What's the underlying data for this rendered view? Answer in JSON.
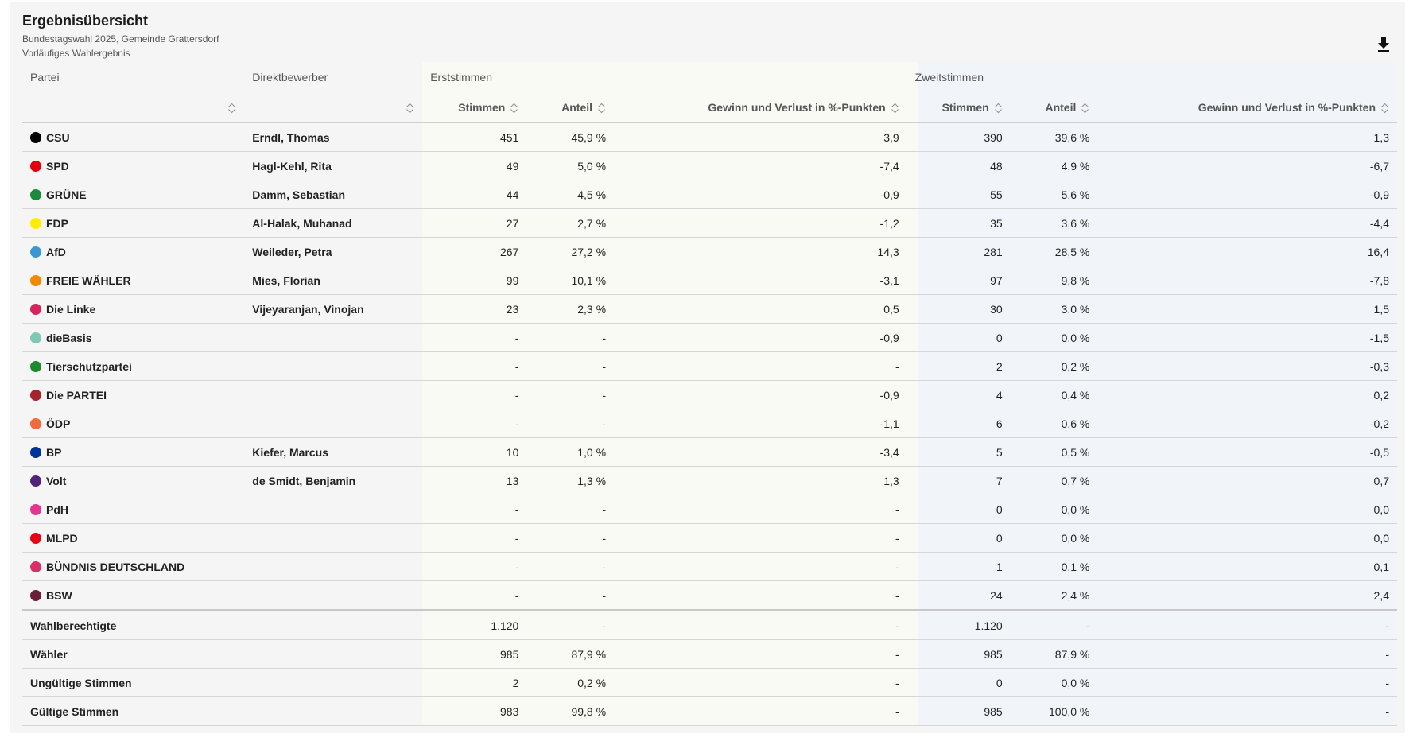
{
  "header": {
    "title": "Ergebnisübersicht",
    "subtitle1": "Bundestagswahl 2025, Gemeinde Grattersdorf",
    "subtitle2": "Vorläufiges Wahlergebnis"
  },
  "icons": {
    "download": "download-icon",
    "sort": "sort-icon"
  },
  "colors": {
    "erst_band": "#f9faf4",
    "zweit_band": "#f1f4f9"
  },
  "columns": {
    "partei": "Partei",
    "direktbewerber": "Direktbewerber",
    "erststimmen": "Erststimmen",
    "zweitstimmen": "Zweitstimmen",
    "stimmen": "Stimmen",
    "anteil": "Anteil",
    "gewinn": "Gewinn und Verlust in %-Punkten"
  },
  "rows": [
    {
      "party": "CSU",
      "color": "#000000",
      "candidate": "Erndl, Thomas",
      "e_stimmen": "451",
      "e_anteil": "45,9 %",
      "e_diff": "3,9",
      "z_stimmen": "390",
      "z_anteil": "39,6 %",
      "z_diff": "1,3"
    },
    {
      "party": "SPD",
      "color": "#e3000f",
      "candidate": "Hagl-Kehl, Rita",
      "e_stimmen": "49",
      "e_anteil": "5,0 %",
      "e_diff": "-7,4",
      "z_stimmen": "48",
      "z_anteil": "4,9 %",
      "z_diff": "-6,7"
    },
    {
      "party": "GRÜNE",
      "color": "#1a8a3b",
      "candidate": "Damm, Sebastian",
      "e_stimmen": "44",
      "e_anteil": "4,5 %",
      "e_diff": "-0,9",
      "z_stimmen": "55",
      "z_anteil": "5,6 %",
      "z_diff": "-0,9"
    },
    {
      "party": "FDP",
      "color": "#ffed00",
      "candidate": "Al-Halak, Muhanad",
      "e_stimmen": "27",
      "e_anteil": "2,7 %",
      "e_diff": "-1,2",
      "z_stimmen": "35",
      "z_anteil": "3,6 %",
      "z_diff": "-4,4"
    },
    {
      "party": "AfD",
      "color": "#3b97d3",
      "candidate": "Weileder, Petra",
      "e_stimmen": "267",
      "e_anteil": "27,2 %",
      "e_diff": "14,3",
      "z_stimmen": "281",
      "z_anteil": "28,5 %",
      "z_diff": "16,4"
    },
    {
      "party": "FREIE WÄHLER",
      "color": "#f18a00",
      "candidate": "Mies, Florian",
      "e_stimmen": "99",
      "e_anteil": "10,1 %",
      "e_diff": "-3,1",
      "z_stimmen": "97",
      "z_anteil": "9,8 %",
      "z_diff": "-7,8"
    },
    {
      "party": "Die Linke",
      "color": "#d6245d",
      "candidate": "Vijeyaranjan, Vinojan",
      "e_stimmen": "23",
      "e_anteil": "2,3 %",
      "e_diff": "0,5",
      "z_stimmen": "30",
      "z_anteil": "3,0 %",
      "z_diff": "1,5"
    },
    {
      "party": "dieBasis",
      "color": "#7ec8b4",
      "candidate": "",
      "e_stimmen": "-",
      "e_anteil": "-",
      "e_diff": "-0,9",
      "z_stimmen": "0",
      "z_anteil": "0,0 %",
      "z_diff": "-1,5"
    },
    {
      "party": "Tierschutzpartei",
      "color": "#1e8a2e",
      "candidate": "",
      "e_stimmen": "-",
      "e_anteil": "-",
      "e_diff": "-",
      "z_stimmen": "2",
      "z_anteil": "0,2 %",
      "z_diff": "-0,3"
    },
    {
      "party": "Die PARTEI",
      "color": "#a5232b",
      "candidate": "",
      "e_stimmen": "-",
      "e_anteil": "-",
      "e_diff": "-0,9",
      "z_stimmen": "4",
      "z_anteil": "0,4 %",
      "z_diff": "0,2"
    },
    {
      "party": "ÖDP",
      "color": "#f06b3c",
      "candidate": "",
      "e_stimmen": "-",
      "e_anteil": "-",
      "e_diff": "-1,1",
      "z_stimmen": "6",
      "z_anteil": "0,6 %",
      "z_diff": "-0,2"
    },
    {
      "party": "BP",
      "color": "#003399",
      "candidate": "Kiefer, Marcus",
      "e_stimmen": "10",
      "e_anteil": "1,0 %",
      "e_diff": "-3,4",
      "z_stimmen": "5",
      "z_anteil": "0,5 %",
      "z_diff": "-0,5"
    },
    {
      "party": "Volt",
      "color": "#502379",
      "candidate": "de Smidt, Benjamin",
      "e_stimmen": "13",
      "e_anteil": "1,3 %",
      "e_diff": "1,3",
      "z_stimmen": "7",
      "z_anteil": "0,7 %",
      "z_diff": "0,7"
    },
    {
      "party": "PdH",
      "color": "#e4368e",
      "candidate": "",
      "e_stimmen": "-",
      "e_anteil": "-",
      "e_diff": "-",
      "z_stimmen": "0",
      "z_anteil": "0,0 %",
      "z_diff": "0,0"
    },
    {
      "party": "MLPD",
      "color": "#e30613",
      "candidate": "",
      "e_stimmen": "-",
      "e_anteil": "-",
      "e_diff": "-",
      "z_stimmen": "0",
      "z_anteil": "0,0 %",
      "z_diff": "0,0"
    },
    {
      "party": "BÜNDNIS DEUTSCHLAND",
      "color": "#d92e6a",
      "candidate": "",
      "e_stimmen": "-",
      "e_anteil": "-",
      "e_diff": "-",
      "z_stimmen": "1",
      "z_anteil": "0,1 %",
      "z_diff": "0,1"
    },
    {
      "party": "BSW",
      "color": "#6b1e3a",
      "candidate": "",
      "e_stimmen": "-",
      "e_anteil": "-",
      "e_diff": "-",
      "z_stimmen": "24",
      "z_anteil": "2,4 %",
      "z_diff": "2,4"
    }
  ],
  "summary": [
    {
      "label": "Wahlberechtigte",
      "e_stimmen": "1.120",
      "e_anteil": "-",
      "e_diff": "-",
      "z_stimmen": "1.120",
      "z_anteil": "-",
      "z_diff": "-"
    },
    {
      "label": "Wähler",
      "e_stimmen": "985",
      "e_anteil": "87,9 %",
      "e_diff": "-",
      "z_stimmen": "985",
      "z_anteil": "87,9 %",
      "z_diff": "-"
    },
    {
      "label": "Ungültige Stimmen",
      "e_stimmen": "2",
      "e_anteil": "0,2 %",
      "e_diff": "-",
      "z_stimmen": "0",
      "z_anteil": "0,0 %",
      "z_diff": "-"
    },
    {
      "label": "Gültige Stimmen",
      "e_stimmen": "983",
      "e_anteil": "99,8 %",
      "e_diff": "-",
      "z_stimmen": "985",
      "z_anteil": "100,0 %",
      "z_diff": "-"
    }
  ]
}
